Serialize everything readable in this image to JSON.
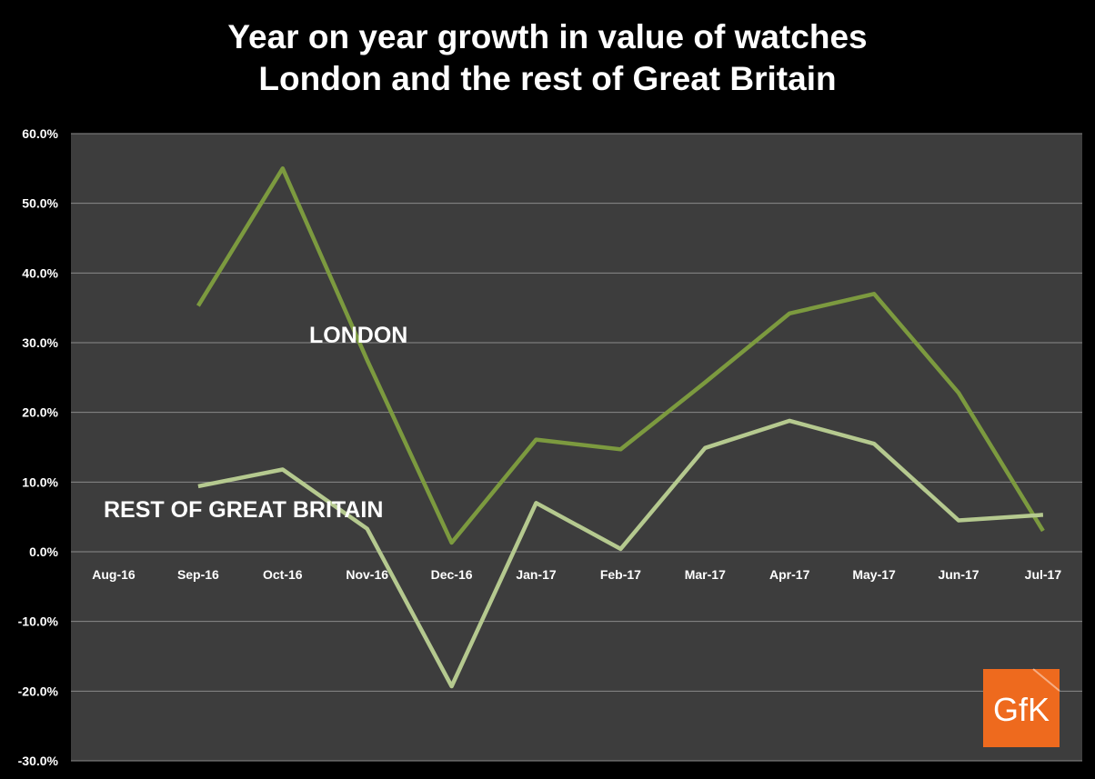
{
  "title_line1": "Year on year growth in value of watches",
  "title_line2": "London and the rest of Great Britain",
  "logo_text": "GfK",
  "colors": {
    "background": "#000000",
    "plot_area": "#3d3d3d",
    "gridline": "#8a8a8a",
    "london": "#7c9a3f",
    "rest_of_gb": "#b5c98f",
    "logo": "#ee6a1e"
  },
  "chart_data": {
    "type": "line",
    "title": "Year on year growth in value of watches London and the rest of Great Britain",
    "categories": [
      "Aug-16",
      "Sep-16",
      "Oct-16",
      "Nov-16",
      "Dec-16",
      "Jan-17",
      "Feb-17",
      "Mar-17",
      "Apr-17",
      "May-17",
      "Jun-17",
      "Jul-17"
    ],
    "ylim": [
      -0.3,
      0.6
    ],
    "yticks": [
      0.6,
      0.5,
      0.4,
      0.3,
      0.2,
      0.1,
      0.0,
      -0.1,
      -0.2,
      -0.3
    ],
    "ytick_labels": [
      "60.0%",
      "50.0%",
      "40.0%",
      "30.0%",
      "20.0%",
      "10.0%",
      "0.0%",
      "-10.0%",
      "-20.0%",
      "-30.0%"
    ],
    "grid": true,
    "series": [
      {
        "name": "LONDON",
        "color": "#7c9a3f",
        "values": [
          null,
          0.353,
          0.55,
          0.275,
          0.013,
          0.161,
          0.147,
          0.243,
          0.342,
          0.37,
          0.228,
          0.03
        ]
      },
      {
        "name": "REST OF GREAT BRITAIN",
        "color": "#b5c98f",
        "values": [
          null,
          0.094,
          0.118,
          0.033,
          -0.193,
          0.07,
          0.004,
          0.149,
          0.188,
          0.155,
          0.045,
          0.053
        ]
      }
    ]
  }
}
